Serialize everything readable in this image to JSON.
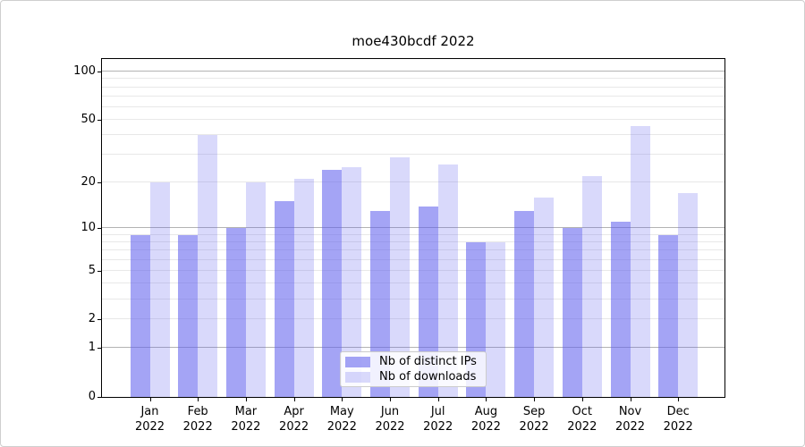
{
  "chart_data": {
    "type": "bar",
    "title": "moe430bcdf 2022",
    "categories": [
      "Jan 2022",
      "Feb 2022",
      "Mar 2022",
      "Apr 2022",
      "May 2022",
      "Jun 2022",
      "Jul 2022",
      "Aug 2022",
      "Sep 2022",
      "Oct 2022",
      "Nov 2022",
      "Dec 2022"
    ],
    "series": [
      {
        "name": "Nb of distinct IPs",
        "color": "#5c5cee",
        "alpha": 0.56,
        "values": [
          9,
          9,
          10,
          15,
          24,
          13,
          14,
          8,
          13,
          10,
          11,
          9
        ]
      },
      {
        "name": "Nb of downloads",
        "color": "#5c5cee",
        "alpha": 0.23,
        "values": [
          20,
          40,
          20,
          21,
          25,
          29,
          26,
          8,
          16,
          22,
          46,
          17
        ]
      }
    ],
    "xlabel": "",
    "ylabel": "",
    "yscale": "log1p",
    "ylim": [
      0,
      120
    ],
    "y_ticks": [
      {
        "value": 100,
        "label": "100"
      },
      {
        "value": 50,
        "label": "50"
      },
      {
        "value": 20,
        "label": "20"
      },
      {
        "value": 10,
        "label": "10"
      },
      {
        "value": 5,
        "label": "5"
      },
      {
        "value": 2,
        "label": "2"
      },
      {
        "value": 1,
        "label": "1"
      },
      {
        "value": 0,
        "label": "0"
      }
    ],
    "y_grid_major": [
      1,
      10,
      100
    ],
    "y_grid_minor": [
      2,
      3,
      4,
      5,
      6,
      7,
      8,
      9,
      20,
      30,
      40,
      50,
      60,
      70,
      80,
      90
    ],
    "grid": true,
    "legend_position": "lower center"
  },
  "colors": {
    "grid_minor": "#e8e8e8",
    "grid_major": "#b3b3b3",
    "spine": "#000000",
    "text": "#000000",
    "legend_border": "#cccccc"
  }
}
